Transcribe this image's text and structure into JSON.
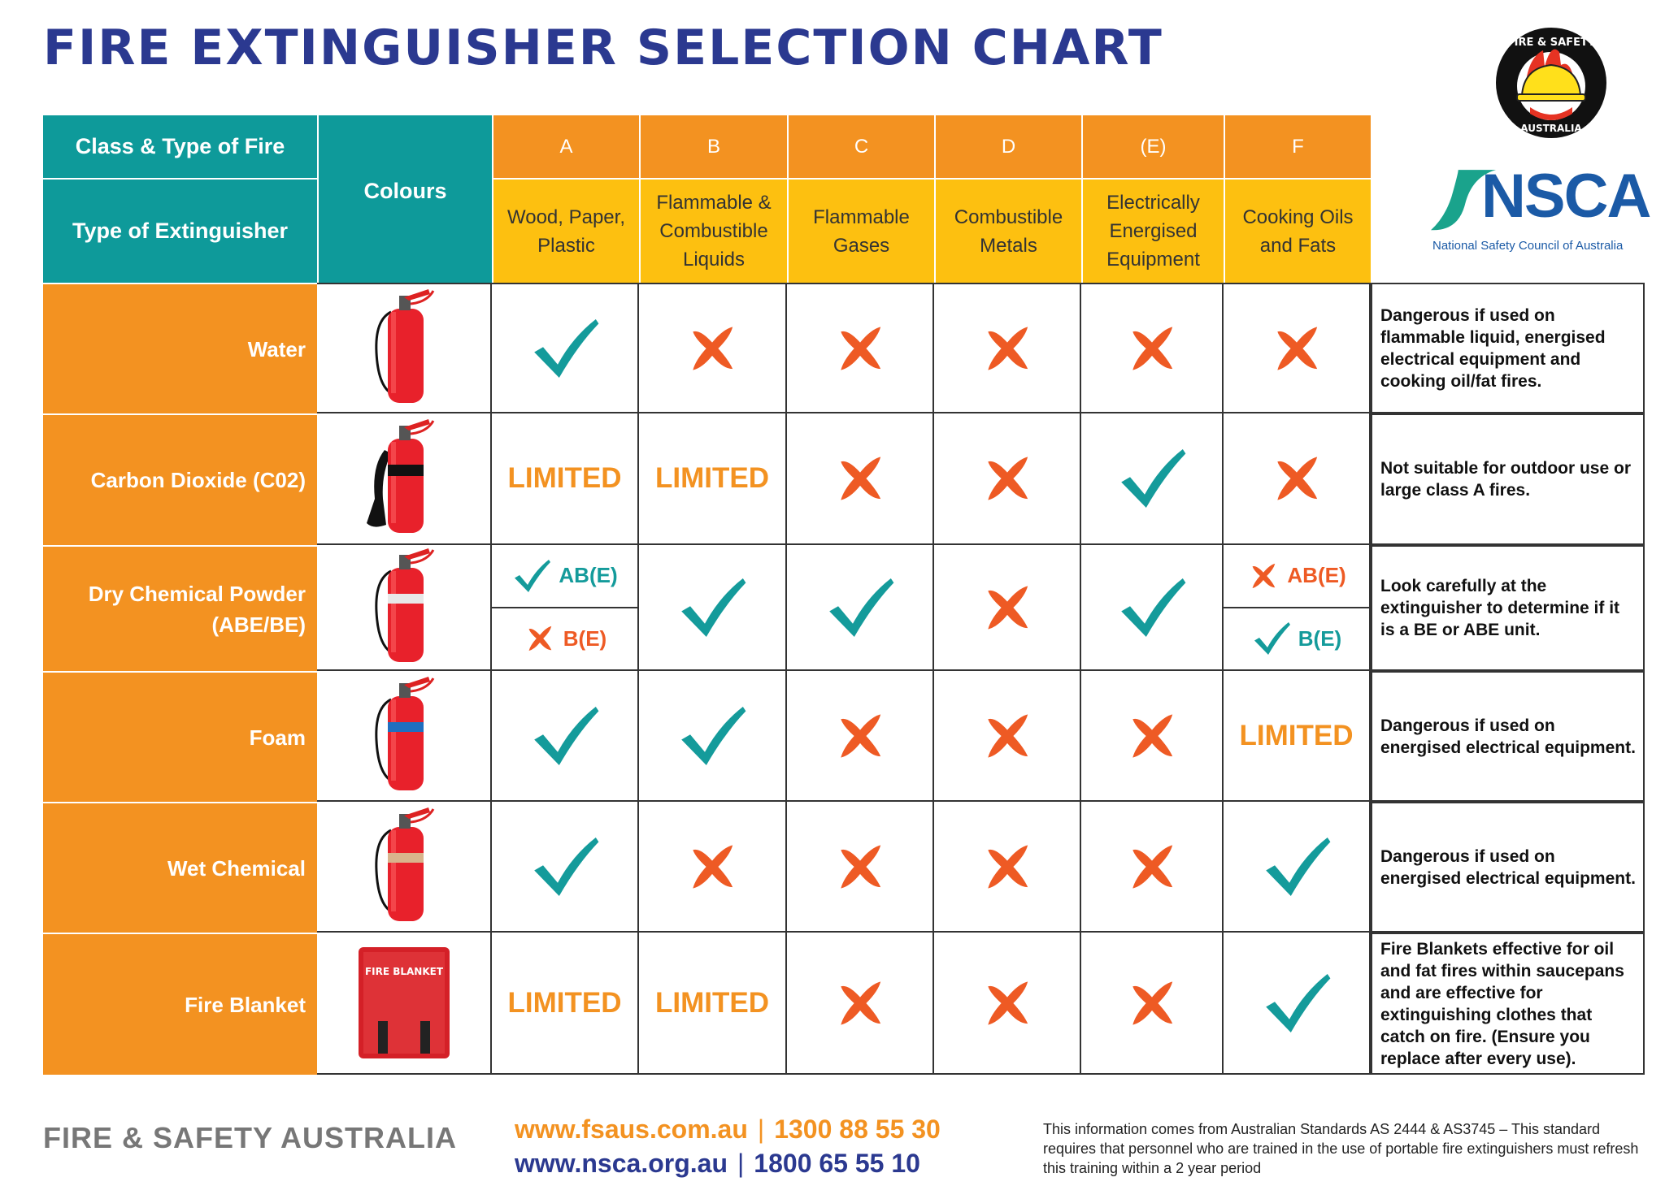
{
  "title": "FIRE EXTINGUISHER SELECTION CHART",
  "colors": {
    "teal": "#0e9a9a",
    "orange": "#f39221",
    "yellow": "#fdc010",
    "check": "#149b9b",
    "cross": "#ee5a24",
    "title": "#2b3990"
  },
  "header": {
    "class_label": "Class & Type of Fire",
    "type_label": "Type of Extinguisher",
    "colours_label": "Colours",
    "classes": [
      {
        "letter": "A",
        "desc": "Wood, Paper, Plastic"
      },
      {
        "letter": "B",
        "desc": "Flammable & Combustible Liquids"
      },
      {
        "letter": "C",
        "desc": "Flammable Gases"
      },
      {
        "letter": "D",
        "desc": "Combustible Metals"
      },
      {
        "letter": "(E)",
        "desc": "Electrically Energised Equipment"
      },
      {
        "letter": "F",
        "desc": "Cooking Oils and Fats"
      }
    ]
  },
  "logos": {
    "fsa_top": "FIRE & SAFETY",
    "fsa_bottom": "AUSTRALIA",
    "nsca": "NSCA",
    "nsca_sub": "National Safety Council of Australia"
  },
  "rows": [
    {
      "name": "Water",
      "image": "extinguisher",
      "band": "none",
      "cells": [
        {
          "t": "check"
        },
        {
          "t": "cross"
        },
        {
          "t": "cross"
        },
        {
          "t": "cross"
        },
        {
          "t": "cross"
        },
        {
          "t": "cross"
        }
      ],
      "note": "Dangerous if used on flammable liquid, energised electrical equipment and cooking oil/fat fires."
    },
    {
      "name": "Carbon Dioxide (C02)",
      "image": "extinguisher-horn",
      "band": "#111111",
      "cells": [
        {
          "t": "limited",
          "label": "LIMITED"
        },
        {
          "t": "limited",
          "label": "LIMITED"
        },
        {
          "t": "cross"
        },
        {
          "t": "cross"
        },
        {
          "t": "check"
        },
        {
          "t": "cross"
        }
      ],
      "note": "Not suitable for outdoor use or large class A fires."
    },
    {
      "name": "Dry Chemical Powder (ABE/BE)",
      "image": "extinguisher",
      "band": "#e8e8e8",
      "cells": [
        {
          "t": "split",
          "top": {
            "mark": "check",
            "label": "AB(E)"
          },
          "bottom": {
            "mark": "cross",
            "label": "B(E)"
          }
        },
        {
          "t": "check"
        },
        {
          "t": "check"
        },
        {
          "t": "cross"
        },
        {
          "t": "check"
        },
        {
          "t": "split",
          "top": {
            "mark": "cross",
            "label": "AB(E)"
          },
          "bottom": {
            "mark": "check",
            "label": "B(E)"
          }
        }
      ],
      "note": "Look carefully at the extinguisher to determine if it is a BE or ABE unit."
    },
    {
      "name": "Foam",
      "image": "extinguisher",
      "band": "#1f6fc0",
      "cells": [
        {
          "t": "check"
        },
        {
          "t": "check"
        },
        {
          "t": "cross"
        },
        {
          "t": "cross"
        },
        {
          "t": "cross"
        },
        {
          "t": "limited",
          "label": "LIMITED"
        }
      ],
      "note": "Dangerous if used on energised electrical equipment."
    },
    {
      "name": "Wet Chemical",
      "image": "extinguisher",
      "band": "#d9b48c",
      "cells": [
        {
          "t": "check"
        },
        {
          "t": "cross"
        },
        {
          "t": "cross"
        },
        {
          "t": "cross"
        },
        {
          "t": "cross"
        },
        {
          "t": "check"
        }
      ],
      "note": "Dangerous if used on energised electrical equipment."
    },
    {
      "name": "Fire Blanket",
      "image": "blanket",
      "blanket_label": "FIRE BLANKET",
      "cells": [
        {
          "t": "limited",
          "label": "LIMITED"
        },
        {
          "t": "limited",
          "label": "LIMITED"
        },
        {
          "t": "cross"
        },
        {
          "t": "cross"
        },
        {
          "t": "cross"
        },
        {
          "t": "check"
        }
      ],
      "note": "Fire Blankets effective for oil and fat fires within saucepans and are effective for extinguishing clothes that catch on fire. (Ensure you replace after every use)."
    }
  ],
  "footer": {
    "brand": "FIRE & SAFETY AUSTRALIA",
    "fsa_url": "www.fsaus.com.au",
    "fsa_phone": "1300 88 55 30",
    "nsca_url": "www.nsca.org.au",
    "nsca_phone": "1800 65 55 10",
    "disclaimer": "This information comes from Australian Standards AS 2444 & AS3745 – This standard requires that personnel who are trained in the use of portable fire extinguishers must refresh this training within a 2 year period"
  }
}
